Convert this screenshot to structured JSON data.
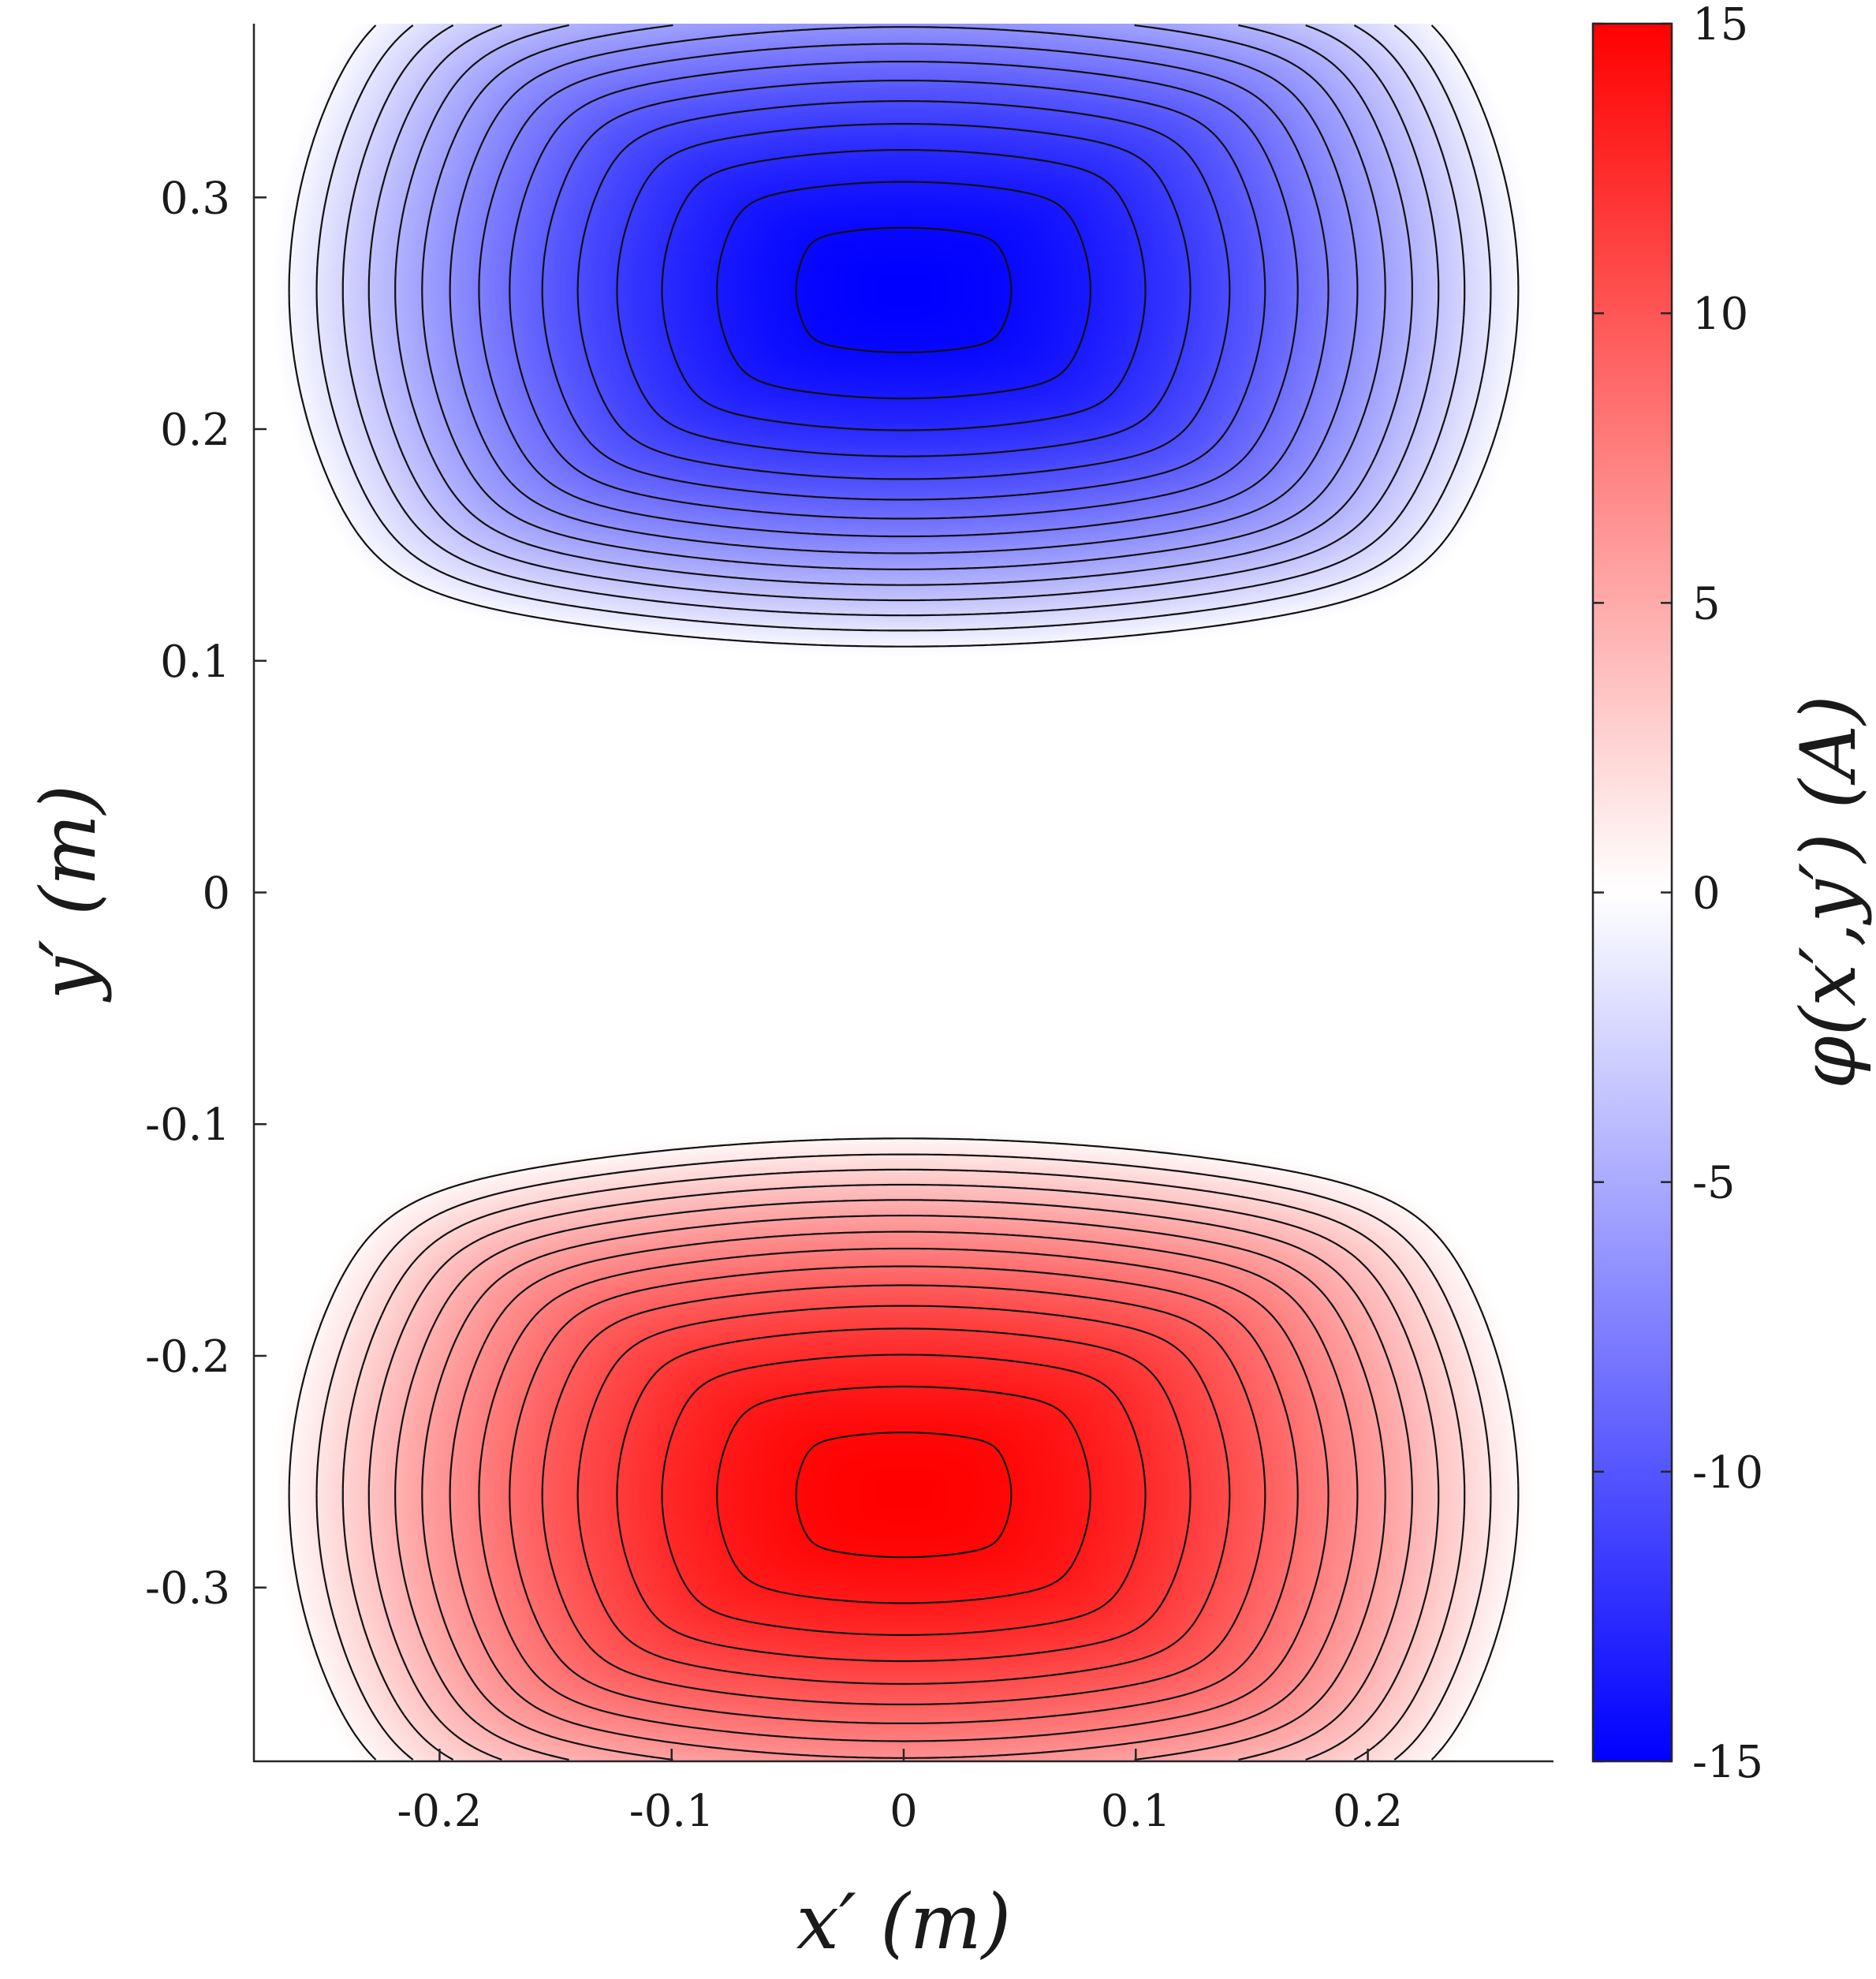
{
  "chart_data": {
    "type": "heatmap",
    "title": "",
    "xlabel": "x′ (m)",
    "ylabel": "y′ (m)",
    "colorbar_label": "φ(x′,y′) (A)",
    "xlim": [
      -0.28,
      0.28
    ],
    "ylim": [
      -0.375,
      0.375
    ],
    "clim": [
      -15,
      15
    ],
    "x_ticks": [
      -0.2,
      -0.1,
      0,
      0.1,
      0.2
    ],
    "x_tick_labels": [
      "-0.2",
      "-0.1",
      "0",
      "0.1",
      "0.2"
    ],
    "y_ticks": [
      0.3,
      0.2,
      0.1,
      0,
      -0.1,
      -0.2,
      -0.3
    ],
    "y_tick_labels": [
      "0.3",
      "0.2",
      "0.1",
      "0",
      "-0.1",
      "-0.2",
      "-0.3"
    ],
    "colorbar_ticks": [
      15,
      10,
      5,
      0,
      -5,
      -10,
      -15
    ],
    "colorbar_tick_labels": [
      "15",
      "10",
      "5",
      "0",
      "-5",
      "-10",
      "-15"
    ],
    "colormap": {
      "negative": "#0000ff",
      "zero": "#ffffff",
      "positive": "#ff0000"
    },
    "field": {
      "description_of_shape": "two rounded-rectangular lobes of opposite sign",
      "lobes": [
        {
          "sign": "negative",
          "center": [
            0.0,
            0.26
          ],
          "peak_value": -15,
          "contour_style": "dashed"
        },
        {
          "sign": "positive",
          "center": [
            0.0,
            -0.26
          ],
          "peak_value": 15,
          "contour_style": "solid"
        }
      ],
      "contour_step": 1,
      "grid": "off"
    }
  }
}
